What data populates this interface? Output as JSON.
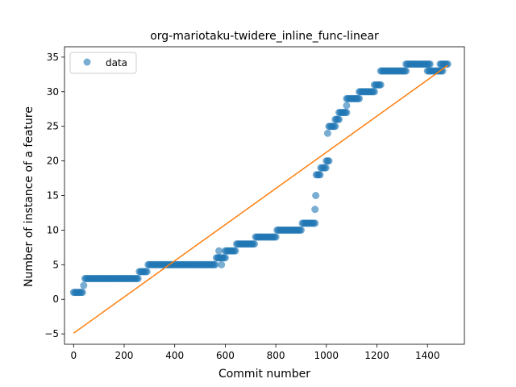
{
  "chart_data": {
    "type": "scatter",
    "title": "org-mariotaku-twidere_inline_func-linear",
    "xlabel": "Commit number",
    "ylabel": "Number of instance of a feature",
    "xlim": [
      -36,
      1546
    ],
    "ylim": [
      -6.5,
      36.5
    ],
    "x_ticks": [
      0,
      200,
      400,
      600,
      800,
      1000,
      1200,
      1400
    ],
    "y_ticks": [
      -5,
      0,
      5,
      10,
      15,
      20,
      25,
      30,
      35
    ],
    "grid": false,
    "legend": {
      "position": "top-left",
      "entries": [
        "data"
      ]
    },
    "colors": {
      "data": "#1f77b4",
      "fit": "#ff7f0e"
    },
    "series": [
      {
        "name": "data",
        "kind": "points",
        "segments": [
          {
            "x_start": 0,
            "x_end": 35,
            "y": 1
          },
          {
            "x_start": 40,
            "x_end": 40,
            "y": 2
          },
          {
            "x_start": 45,
            "x_end": 255,
            "y": 3
          },
          {
            "x_start": 260,
            "x_end": 290,
            "y": 4
          },
          {
            "x_start": 295,
            "x_end": 560,
            "y": 5
          },
          {
            "x_start": 565,
            "x_end": 600,
            "y": 6
          },
          {
            "x_start": 575,
            "x_end": 575,
            "y": 7
          },
          {
            "x_start": 585,
            "x_end": 585,
            "y": 5
          },
          {
            "x_start": 600,
            "x_end": 640,
            "y": 7
          },
          {
            "x_start": 645,
            "x_end": 715,
            "y": 8
          },
          {
            "x_start": 720,
            "x_end": 800,
            "y": 9
          },
          {
            "x_start": 805,
            "x_end": 900,
            "y": 10
          },
          {
            "x_start": 905,
            "x_end": 955,
            "y": 11
          },
          {
            "x_start": 955,
            "x_end": 955,
            "y": 13
          },
          {
            "x_start": 958,
            "x_end": 958,
            "y": 15
          },
          {
            "x_start": 960,
            "x_end": 975,
            "y": 18
          },
          {
            "x_start": 978,
            "x_end": 1000,
            "y": 19
          },
          {
            "x_start": 1000,
            "x_end": 1010,
            "y": 20
          },
          {
            "x_start": 1005,
            "x_end": 1005,
            "y": 24
          },
          {
            "x_start": 1010,
            "x_end": 1035,
            "y": 25
          },
          {
            "x_start": 1035,
            "x_end": 1050,
            "y": 26
          },
          {
            "x_start": 1050,
            "x_end": 1080,
            "y": 27
          },
          {
            "x_start": 1080,
            "x_end": 1080,
            "y": 28
          },
          {
            "x_start": 1080,
            "x_end": 1130,
            "y": 29
          },
          {
            "x_start": 1130,
            "x_end": 1190,
            "y": 30
          },
          {
            "x_start": 1190,
            "x_end": 1215,
            "y": 31
          },
          {
            "x_start": 1215,
            "x_end": 1315,
            "y": 33
          },
          {
            "x_start": 1315,
            "x_end": 1410,
            "y": 34
          },
          {
            "x_start": 1400,
            "x_end": 1460,
            "y": 33
          },
          {
            "x_start": 1450,
            "x_end": 1480,
            "y": 34
          }
        ]
      },
      {
        "kind": "line",
        "x": [
          0,
          1480
        ],
        "y": [
          -4.9,
          33.8
        ]
      }
    ]
  }
}
